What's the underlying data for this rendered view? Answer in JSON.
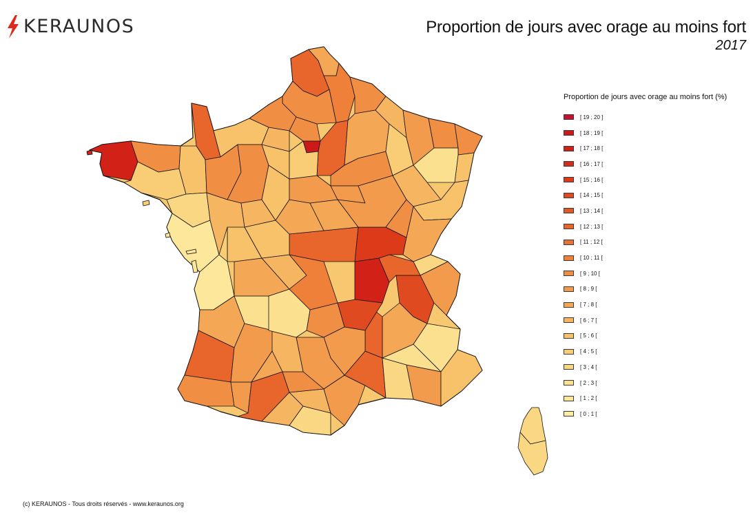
{
  "logo": {
    "text": "KERAUNOS",
    "icon": "lightning-bolt-icon",
    "icon_color": "#e0271b"
  },
  "header": {
    "title": "Proportion de jours avec orage au moins fort",
    "subtitle": "2017"
  },
  "legend": {
    "title": "Proportion de jours avec orage au moins fort (%)",
    "classes": [
      {
        "label": "[ 19 ; 20 ]",
        "color": "#c8102e"
      },
      {
        "label": "[ 18 ; 19 [",
        "color": "#cc1a1a"
      },
      {
        "label": "[ 17 ; 18 [",
        "color": "#d22116"
      },
      {
        "label": "[ 16 ; 17 [",
        "color": "#d72c17"
      },
      {
        "label": "[ 15 ; 16 [",
        "color": "#dd3a1a"
      },
      {
        "label": "[ 14 ; 15 [",
        "color": "#e04a20"
      },
      {
        "label": "[ 13 ; 14 [",
        "color": "#e45826"
      },
      {
        "label": "[ 12 ; 13 [",
        "color": "#e8652c"
      },
      {
        "label": "[ 11 ; 12 [",
        "color": "#eb7233"
      },
      {
        "label": "[ 10 ; 11 [",
        "color": "#ee803a"
      },
      {
        "label": "[ 9 ; 10 [",
        "color": "#f08e44"
      },
      {
        "label": "[ 8 ; 9 [",
        "color": "#f29b4c"
      },
      {
        "label": "[ 7 ; 8 [",
        "color": "#f4a856"
      },
      {
        "label": "[ 6 ; 7 [",
        "color": "#f6b560"
      },
      {
        "label": "[ 5 ; 6 [",
        "color": "#f7c26a"
      },
      {
        "label": "[ 4 ; 5 [",
        "color": "#f9cd76"
      },
      {
        "label": "[ 3 ; 4 [",
        "color": "#fad783"
      },
      {
        "label": "[ 2 ; 3 [",
        "color": "#fbe08f"
      },
      {
        "label": "[ 1 ; 2 [",
        "color": "#fce79a"
      },
      {
        "label": "[ 0 ; 1 [",
        "color": "#fdeea6"
      }
    ]
  },
  "footer": {
    "copyright": "(c) KERAUNOS - Tous droits réservés - www.keraunos.org"
  }
}
